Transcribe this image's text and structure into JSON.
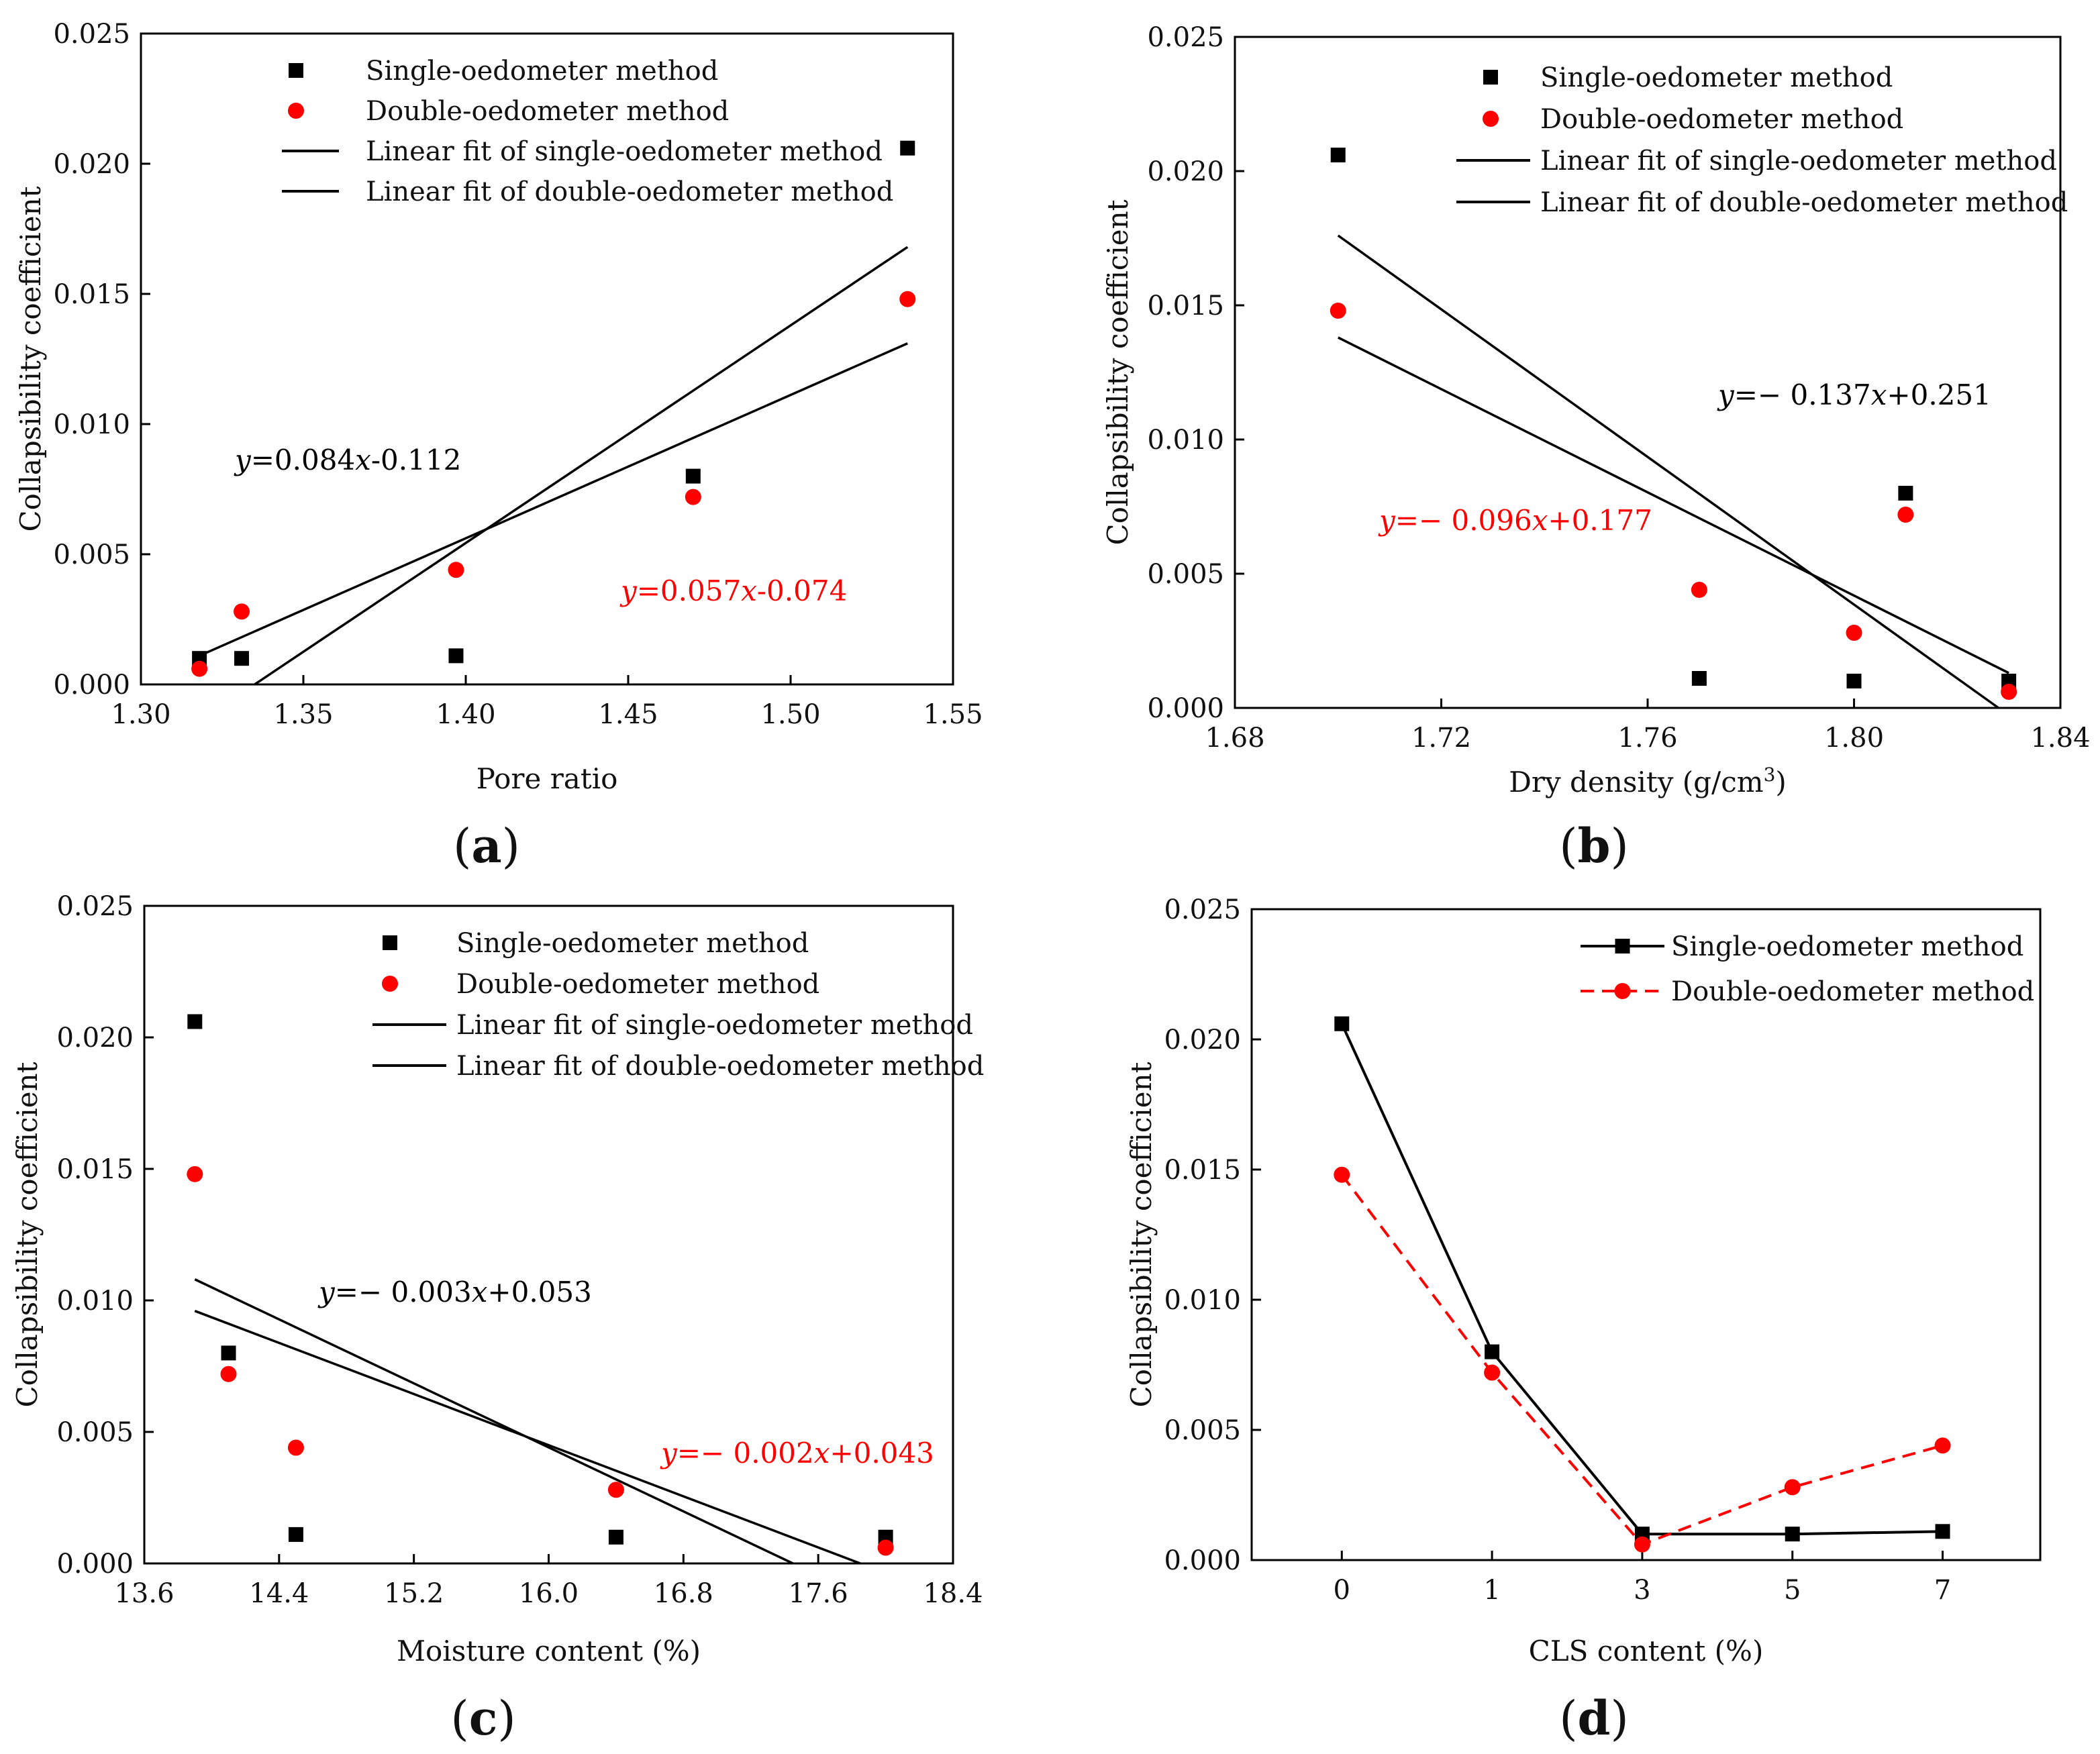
{
  "colors": {
    "single": "#000000",
    "double": "#ff0000"
  },
  "chart_data": [
    {
      "type": "scatter",
      "panel_label": "a",
      "xlabel": "Pore ratio",
      "ylabel": "Collapsibility coefficient",
      "xlim": [
        1.3,
        1.55
      ],
      "ylim": [
        0,
        0.025
      ],
      "x_ticks": [
        "1.30",
        "1.35",
        "1.40",
        "1.45",
        "1.50",
        "1.55"
      ],
      "y_ticks": [
        "0.000",
        "0.005",
        "0.010",
        "0.015",
        "0.020",
        "0.025"
      ],
      "legend": [
        "Single-oedometer method",
        "Double-oedometer method",
        "Linear fit of single-oedometer method",
        "Linear fit of double-oedometer method"
      ],
      "series": [
        {
          "name": "Single-oedometer method",
          "marker": "square",
          "x": [
            1.318,
            1.331,
            1.397,
            1.47,
            1.536
          ],
          "y": [
            0.001,
            0.001,
            0.0011,
            0.008,
            0.0206
          ]
        },
        {
          "name": "Double-oedometer method",
          "marker": "circle",
          "x": [
            1.318,
            1.331,
            1.397,
            1.47,
            1.536
          ],
          "y": [
            0.0006,
            0.0028,
            0.0044,
            0.0072,
            0.0148
          ]
        }
      ],
      "fits": [
        {
          "name": "Linear fit of single-oedometer method",
          "x": [
            1.335,
            1.536
          ],
          "y": [
            0.0,
            0.0168
          ]
        },
        {
          "name": "Linear fit of double-oedometer method",
          "x": [
            1.318,
            1.536
          ],
          "y": [
            0.0011,
            0.0131
          ]
        }
      ],
      "equations": [
        {
          "series": "single",
          "y": "y",
          "rest1": "=0.084",
          "x": "x",
          "rest2": "-0.112"
        },
        {
          "series": "double",
          "y": "y",
          "rest1": "=0.057",
          "x": "x",
          "rest2": "-0.074"
        }
      ]
    },
    {
      "type": "scatter",
      "panel_label": "b",
      "xlabel": "Dry density (g/cm",
      "xlabel_sup": "3",
      "xlabel_end": ")",
      "ylabel": "Collapsibility coefficient",
      "xlim": [
        1.68,
        1.84
      ],
      "ylim": [
        0,
        0.025
      ],
      "x_ticks": [
        "1.68",
        "1.72",
        "1.76",
        "1.80",
        "1.84"
      ],
      "y_ticks": [
        "0.000",
        "0.005",
        "0.010",
        "0.015",
        "0.020",
        "0.025"
      ],
      "legend": [
        "Single-oedometer method",
        "Double-oedometer method",
        "Linear fit of single-oedometer method",
        "Linear fit of double-oedometer method"
      ],
      "series": [
        {
          "name": "Single-oedometer method",
          "marker": "square",
          "x": [
            1.7,
            1.77,
            1.8,
            1.81,
            1.83
          ],
          "y": [
            0.0206,
            0.0011,
            0.001,
            0.008,
            0.001
          ]
        },
        {
          "name": "Double-oedometer method",
          "marker": "circle",
          "x": [
            1.7,
            1.77,
            1.8,
            1.81,
            1.83
          ],
          "y": [
            0.0148,
            0.0044,
            0.0028,
            0.0072,
            0.0006
          ]
        }
      ],
      "fits": [
        {
          "name": "Linear fit of single-oedometer method",
          "x": [
            1.7,
            1.828
          ],
          "y": [
            0.0176,
            0.0
          ]
        },
        {
          "name": "Linear fit of double-oedometer method",
          "x": [
            1.7,
            1.83
          ],
          "y": [
            0.0138,
            0.0013
          ]
        }
      ],
      "equations": [
        {
          "series": "single",
          "y": "y",
          "rest1": "=− 0.137",
          "x": "x",
          "rest2": "+0.251"
        },
        {
          "series": "double",
          "y": "y",
          "rest1": "=− 0.096",
          "x": "x",
          "rest2": "+0.177"
        }
      ]
    },
    {
      "type": "scatter",
      "panel_label": "c",
      "xlabel": "Moisture content (%)",
      "ylabel": "Collapsibility coefficient",
      "xlim": [
        13.6,
        18.4
      ],
      "ylim": [
        0,
        0.025
      ],
      "x_ticks": [
        "13.6",
        "14.4",
        "15.2",
        "16.0",
        "16.8",
        "17.6",
        "18.4"
      ],
      "y_ticks": [
        "0.000",
        "0.005",
        "0.010",
        "0.015",
        "0.020",
        "0.025"
      ],
      "legend": [
        "Single-oedometer method",
        "Double-oedometer method",
        "Linear fit of single-oedometer method",
        "Linear fit of double-oedometer method"
      ],
      "series": [
        {
          "name": "Single-oedometer method",
          "marker": "square",
          "x": [
            13.9,
            14.1,
            14.5,
            16.4,
            18.0
          ],
          "y": [
            0.0206,
            0.008,
            0.0011,
            0.001,
            0.001
          ]
        },
        {
          "name": "Double-oedometer method",
          "marker": "circle",
          "x": [
            13.9,
            14.1,
            14.5,
            16.4,
            18.0
          ],
          "y": [
            0.0148,
            0.0072,
            0.0044,
            0.0028,
            0.0006
          ]
        }
      ],
      "fits": [
        {
          "name": "Linear fit of single-oedometer method",
          "x": [
            13.9,
            17.45
          ],
          "y": [
            0.0108,
            0.0
          ]
        },
        {
          "name": "Linear fit of double-oedometer method",
          "x": [
            13.9,
            17.85
          ],
          "y": [
            0.0096,
            0.0
          ]
        }
      ],
      "equations": [
        {
          "series": "single",
          "y": "y",
          "rest1": "=− 0.003",
          "x": "x",
          "rest2": "+0.053"
        },
        {
          "series": "double",
          "y": "y",
          "rest1": "=− 0.002",
          "x": "x",
          "rest2": "+0.043"
        }
      ]
    },
    {
      "type": "line",
      "panel_label": "d",
      "xlabel": "CLS content (%)",
      "ylabel": "Collapsibility coefficient",
      "xlim": [
        -1,
        5
      ],
      "ylim": [
        0,
        0.025
      ],
      "categories": [
        "0",
        "1",
        "3",
        "5",
        "7"
      ],
      "y_ticks": [
        "0.000",
        "0.005",
        "0.010",
        "0.015",
        "0.020",
        "0.025"
      ],
      "legend": [
        "Single-oedometer method",
        "Double-oedometer method"
      ],
      "series": [
        {
          "name": "Single-oedometer method",
          "marker": "square",
          "line": "solid",
          "values": [
            0.0206,
            0.008,
            0.001,
            0.001,
            0.0011
          ]
        },
        {
          "name": "Double-oedometer method",
          "marker": "circle",
          "line": "dashed",
          "values": [
            0.0148,
            0.0072,
            0.0006,
            0.0028,
            0.0044
          ]
        }
      ]
    }
  ]
}
